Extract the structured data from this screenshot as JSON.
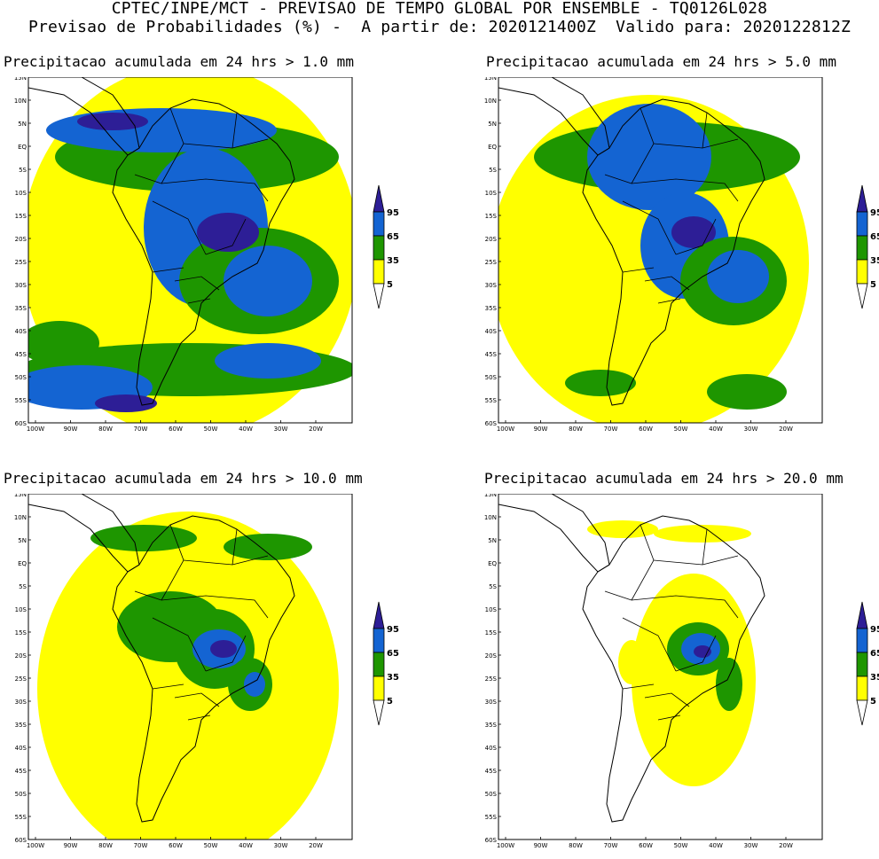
{
  "header": {
    "line1": "CPTEC/INPE/MCT - PREVISAO DE TEMPO GLOBAL POR ENSEMBLE - TQ0126L028",
    "line2": "Previsao de Probabilidades (%) -  A partir de: 2020121400Z  Valido para: 2020122812Z"
  },
  "axes": {
    "lat_labels": [
      "15N",
      "10N",
      "5N",
      "EQ",
      "5S",
      "10S",
      "15S",
      "20S",
      "25S",
      "30S",
      "35S",
      "40S",
      "45S",
      "50S",
      "55S",
      "60S"
    ],
    "lon_labels": [
      "100W",
      "90W",
      "80W",
      "70W",
      "60W",
      "50W",
      "40W",
      "30W",
      "20W"
    ]
  },
  "colors": {
    "yellow": "#ffff00",
    "green": "#1e9600",
    "blue": "#1464d2",
    "darkblue": "#2d1e96",
    "border": "#000000"
  },
  "colorbar": {
    "levels": [
      "95",
      "65",
      "35",
      "5"
    ],
    "colors": [
      "#2d1e96",
      "#1464d2",
      "#1e9600",
      "#ffff00"
    ]
  },
  "panels": [
    {
      "title": "Precipitacao acumulada em 24 hrs > 1.0 mm"
    },
    {
      "title": "Precipitacao acumulada em 24 hrs > 5.0 mm"
    },
    {
      "title": "Precipitacao acumulada em 24 hrs > 10.0 mm"
    },
    {
      "title": "Precipitacao acumulada em 24 hrs > 20.0 mm"
    }
  ]
}
